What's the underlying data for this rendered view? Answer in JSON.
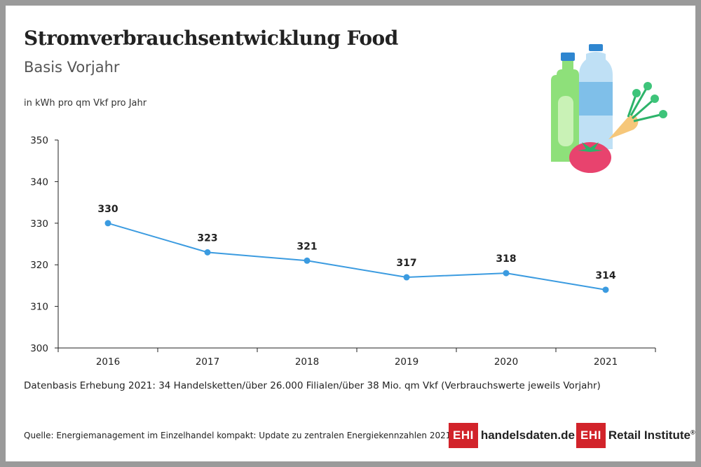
{
  "header": {
    "title": "Stromverbrauchsentwicklung Food",
    "subtitle": "Basis Vorjahr",
    "unit_label": "in kWh pro qm Vkf pro Jahr"
  },
  "chart_data": {
    "type": "line",
    "title": "Stromverbrauchsentwicklung Food",
    "subtitle": "Basis Vorjahr",
    "ylabel": "in kWh pro qm Vkf pro Jahr",
    "xlabel": "",
    "categories": [
      "2016",
      "2017",
      "2018",
      "2019",
      "2020",
      "2021"
    ],
    "series": [
      {
        "values": [
          330,
          323,
          321,
          317,
          318,
          314
        ],
        "color": "#3b9be0"
      }
    ],
    "ylim": [
      300,
      350
    ],
    "yticks": [
      300,
      310,
      320,
      330,
      340,
      350
    ],
    "grid": false,
    "data_labels": true
  },
  "footer": {
    "note": "Datenbasis Erhebung 2021: 34 Handelsketten/über 26.000 Filialen/über 38 Mio. qm Vkf (Verbrauchswerte jeweils Vorjahr)",
    "source": "Quelle: Energiemanagement im Einzelhandel kompakt: Update zu zentralen Energiekennzahlen 2021"
  },
  "logos": {
    "left": {
      "mark": "EHI",
      "text": "handelsdaten.de"
    },
    "right": {
      "mark": "EHI",
      "text": "Retail Institute",
      "suffix": "®"
    }
  },
  "colors": {
    "line": "#3b9be0",
    "brand_red": "#d2232a"
  }
}
